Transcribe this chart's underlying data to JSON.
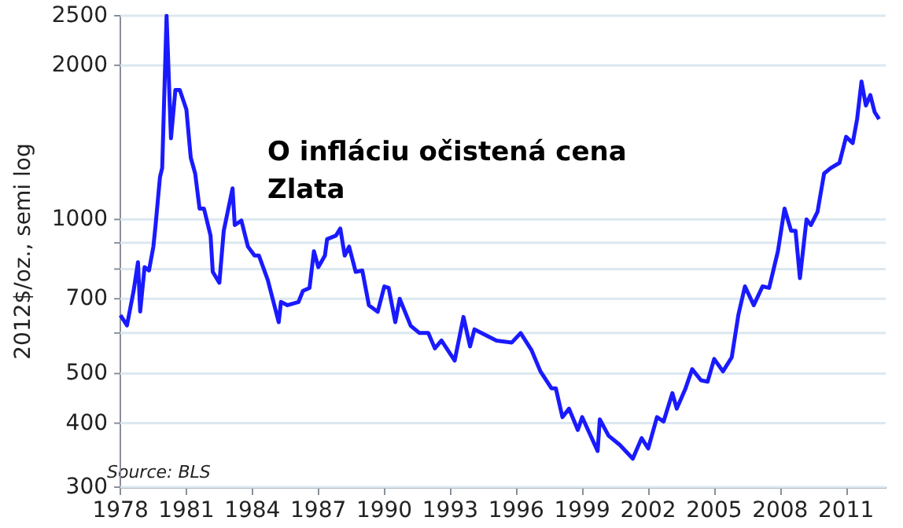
{
  "chart_data": {
    "type": "line",
    "title": "O infláciu očistená cena Zlata",
    "ylabel": "2012$/oz., semi log",
    "annotations": [
      "Source: BLS"
    ],
    "x": [
      1978.0,
      1978.3,
      1978.6,
      1978.8,
      1978.9,
      1979.1,
      1979.3,
      1979.5,
      1979.6,
      1979.8,
      1979.9,
      1980.1,
      1980.3,
      1980.5,
      1980.7,
      1981.0,
      1981.2,
      1981.4,
      1981.6,
      1981.8,
      1982.1,
      1982.2,
      1982.5,
      1982.7,
      1983.1,
      1983.2,
      1983.5,
      1983.8,
      1984.1,
      1984.3,
      1984.7,
      1985.2,
      1985.3,
      1985.6,
      1986.1,
      1986.3,
      1986.6,
      1986.8,
      1987.0,
      1987.3,
      1987.4,
      1987.8,
      1988.0,
      1988.2,
      1988.4,
      1988.7,
      1989.0,
      1989.3,
      1989.7,
      1990.0,
      1990.2,
      1990.5,
      1990.7,
      1991.2,
      1991.6,
      1992.0,
      1992.3,
      1992.6,
      1993.2,
      1993.6,
      1993.9,
      1994.1,
      1995.1,
      1995.8,
      1996.2,
      1996.7,
      1997.1,
      1997.6,
      1997.8,
      1998.1,
      1998.4,
      1998.8,
      1999.0,
      1999.7,
      1999.8,
      2000.2,
      2000.7,
      2001.3,
      2001.7,
      2002.0,
      2002.4,
      2002.7,
      2003.1,
      2003.3,
      2003.7,
      2004.0,
      2004.4,
      2004.7,
      2005.0,
      2005.4,
      2005.8,
      2006.1,
      2006.4,
      2006.8,
      2007.2,
      2007.5,
      2007.9,
      2008.2,
      2008.5,
      2008.7,
      2008.9,
      2009.2,
      2009.4,
      2009.7,
      2010.0,
      2010.3,
      2010.7,
      2011.0,
      2011.3,
      2011.5,
      2011.7,
      2011.9,
      2012.1,
      2012.3,
      2012.5
    ],
    "series": [
      {
        "color": "#1a1aff",
        "values": [
          650,
          621,
          725,
          825,
          661,
          807,
          795,
          885,
          975,
          1210,
          1260,
          2500,
          1440,
          1790,
          1790,
          1640,
          1320,
          1230,
          1050,
          1050,
          930,
          790,
          752,
          950,
          1150,
          975,
          995,
          885,
          850,
          850,
          762,
          630,
          690,
          680,
          690,
          725,
          735,
          867,
          807,
          850,
          915,
          930,
          960,
          850,
          885,
          790,
          795,
          680,
          660,
          740,
          735,
          630,
          700,
          620,
          600,
          600,
          560,
          580,
          530,
          645,
          565,
          610,
          580,
          575,
          600,
          555,
          505,
          468,
          468,
          411,
          427,
          388,
          411,
          353,
          407,
          378,
          363,
          341,
          374,
          357,
          411,
          403,
          458,
          427,
          468,
          510,
          485,
          482,
          534,
          505,
          538,
          651,
          740,
          680,
          740,
          735,
          867,
          1050,
          950,
          950,
          768,
          1000,
          975,
          1035,
          1230,
          1260,
          1290,
          1450,
          1410,
          1570,
          1860,
          1670,
          1750,
          1620,
          1570
        ]
      }
    ],
    "xlim": [
      1978,
      2012.8
    ],
    "xticks": [
      1978,
      1981,
      1984,
      1987,
      1990,
      1993,
      1996,
      1999,
      2002,
      2005,
      2008,
      2011
    ],
    "log": "y",
    "ylim": [
      300,
      2500
    ],
    "yticks": [
      300,
      400,
      500,
      {
        "value": 600,
        "label": null
      },
      700,
      {
        "value": 800,
        "label": null
      },
      {
        "value": 900,
        "label": null
      },
      1000,
      2000,
      2500
    ],
    "grid": "y",
    "marker": "none",
    "line_style": "solid"
  }
}
